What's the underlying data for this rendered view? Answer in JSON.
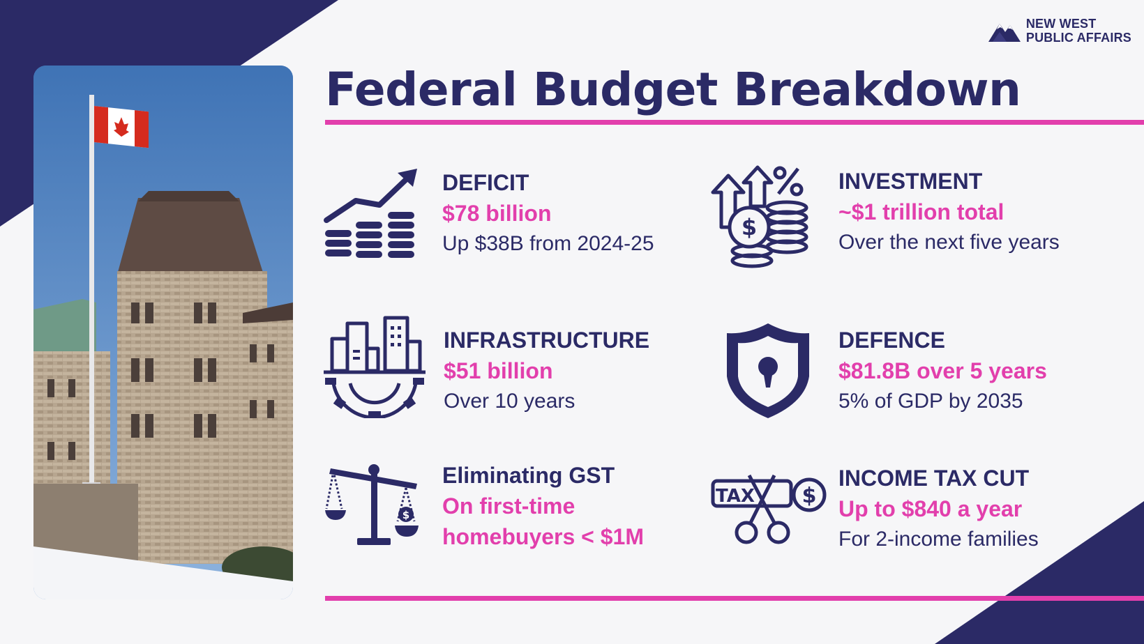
{
  "title": "Federal Budget Breakdown",
  "logo": {
    "line1": "NEW WEST",
    "line2": "PUBLIC AFFAIRS"
  },
  "colors": {
    "navy": "#2b2a66",
    "pink": "#e23fac",
    "background": "#f6f6f8"
  },
  "items": [
    {
      "icon": "bar-chart-coins-icon",
      "heading": "DEFICIT",
      "highlight": "$78 billion",
      "desc": "Up $38B from 2024-25"
    },
    {
      "icon": "investment-coins-icon",
      "heading": "INVESTMENT",
      "highlight": "~$1 trillion total",
      "desc": "Over the next five years"
    },
    {
      "icon": "city-gear-icon",
      "heading": "INFRASTRUCTURE",
      "highlight": "$51 billion",
      "desc": "Over 10 years"
    },
    {
      "icon": "shield-lock-icon",
      "heading": "DEFENCE",
      "highlight": "$81.8B over 5 years",
      "desc": "5% of GDP by 2035"
    },
    {
      "icon": "balance-scale-icon",
      "heading": "Eliminating GST",
      "highlight": "On first-time",
      "highlight2": "homebuyers < $1M"
    },
    {
      "icon": "tax-scissors-icon",
      "heading": "INCOME TAX CUT",
      "highlight": "Up to $840 a year",
      "desc": "For 2-income families"
    }
  ]
}
